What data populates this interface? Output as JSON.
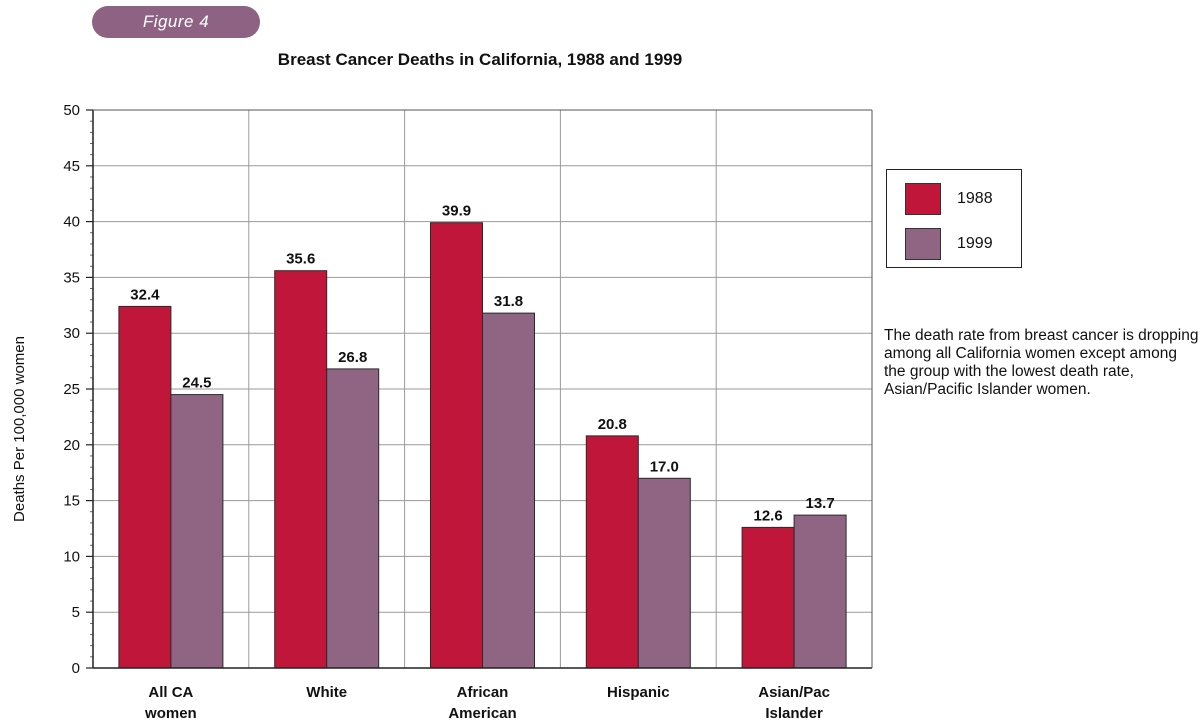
{
  "figure_badge": "Figure 4",
  "note": "The death rate from breast cancer is dropping among all California women except among the group with the lowest death rate, Asian/Pacific Islander women.",
  "colors": {
    "s1988": "#c0163a",
    "s1999": "#8f6583",
    "badge": "#8e6283"
  },
  "chart_data": {
    "type": "bar",
    "title": "Breast Cancer Deaths in California, 1988 and 1999",
    "ylabel": "Deaths Per 100,000 women",
    "xlabel": "",
    "ylim": [
      0,
      50
    ],
    "yticks": [
      0,
      5,
      10,
      15,
      20,
      25,
      30,
      35,
      40,
      45,
      50
    ],
    "grid": true,
    "legend_position": "right",
    "categories": [
      [
        "All CA",
        "women"
      ],
      [
        "White"
      ],
      [
        "African",
        "American"
      ],
      [
        "Hispanic"
      ],
      [
        "Asian/Pac",
        "Islander"
      ]
    ],
    "series": [
      {
        "name": "1988",
        "color": "#c0163a",
        "values": [
          32.4,
          35.6,
          39.9,
          20.8,
          12.6
        ],
        "labels": [
          "32.4",
          "35.6",
          "39.9",
          "20.8",
          "12.6"
        ]
      },
      {
        "name": "1999",
        "color": "#8f6583",
        "values": [
          24.5,
          26.8,
          31.8,
          17.0,
          13.7
        ],
        "labels": [
          "24.5",
          "26.8",
          "31.8",
          "17.0",
          "13.7"
        ]
      }
    ]
  }
}
